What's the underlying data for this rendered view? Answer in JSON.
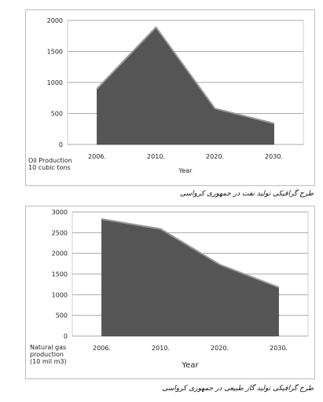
{
  "chart_data": [
    {
      "type": "area",
      "title": "",
      "x": [
        "2006.",
        "2010.",
        "2020.",
        "2030."
      ],
      "values": [
        900,
        1890,
        580,
        340
      ],
      "ylim": [
        0,
        2000
      ],
      "yticks": [
        0,
        500,
        1000,
        1500,
        2000
      ],
      "xlabel": "Year",
      "ylabel_lines": [
        "Oil Production",
        "10 cubic tons"
      ],
      "grid": true,
      "caption": "طرح گرافیکی تولید نفت در جمهوری کرواسی",
      "fill_color": "#555555"
    },
    {
      "type": "area",
      "title": "",
      "x": [
        "2006.",
        "2010.",
        "2020.",
        "2030."
      ],
      "values": [
        2830,
        2590,
        1730,
        1180
      ],
      "ylim": [
        0,
        3000
      ],
      "yticks": [
        0,
        500,
        1000,
        1500,
        2000,
        2500,
        3000
      ],
      "xlabel": "Year",
      "ylabel_lines": [
        "Natural gas",
        "production",
        "(10 mil m3)"
      ],
      "grid": true,
      "caption": "طرح گرافیکی تولید گاز طبیعی در جمهوری کرواسی",
      "fill_color": "#555555"
    }
  ]
}
